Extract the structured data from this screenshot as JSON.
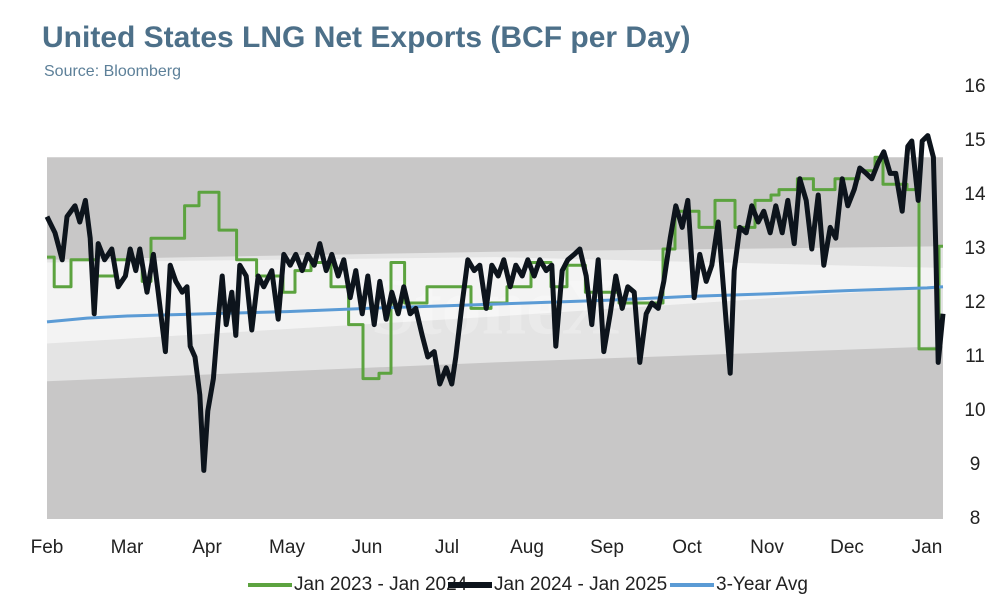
{
  "chart_data": {
    "type": "line",
    "title": "United States LNG Net Exports (BCF per Day)",
    "subtitle": "Source: Bloomberg",
    "watermark": "StoneX",
    "xlim": [
      0,
      11.2
    ],
    "xticks": [
      {
        "value": 0,
        "label": "Feb"
      },
      {
        "value": 1,
        "label": "Mar"
      },
      {
        "value": 2,
        "label": "Apr"
      },
      {
        "value": 3,
        "label": "May"
      },
      {
        "value": 4,
        "label": "Jun"
      },
      {
        "value": 5,
        "label": "Jul"
      },
      {
        "value": 6,
        "label": "Aug"
      },
      {
        "value": 7,
        "label": "Sep"
      },
      {
        "value": 8,
        "label": "Oct"
      },
      {
        "value": 9,
        "label": "Nov"
      },
      {
        "value": 10,
        "label": "Dec"
      },
      {
        "value": 11,
        "label": "Jan"
      }
    ],
    "ylim": [
      8,
      16
    ],
    "yticks": [
      8,
      9,
      10,
      11,
      12,
      13,
      14,
      15,
      16
    ],
    "legend": "bottom",
    "bands": [
      {
        "color": "#c8c7c7",
        "x": [
          0,
          5.6,
          11.2
        ],
        "lower": [
          8,
          8,
          8
        ],
        "upper": [
          14.7,
          14.7,
          14.7
        ]
      },
      {
        "color": "#e4e4e4",
        "x": [
          0,
          5.6,
          11.2
        ],
        "lower": [
          10.55,
          10.9,
          11.2
        ],
        "upper": [
          12.8,
          12.95,
          13.05
        ]
      },
      {
        "color": "#f3f3f3",
        "x": [
          0,
          5.6,
          11.2
        ],
        "lower": [
          11.25,
          11.75,
          12.3
        ],
        "upper": [
          12.75,
          12.85,
          12.65
        ]
      }
    ],
    "series": [
      {
        "name": "Jan 2023 - Jan 2024",
        "color": "#5ca33f",
        "width": 3,
        "step": true,
        "x": [
          0,
          0.09,
          0.3,
          0.62,
          0.85,
          1.19,
          1.3,
          1.72,
          1.9,
          2.15,
          2.37,
          2.62,
          2.95,
          3.1,
          3.3,
          3.55,
          3.77,
          3.95,
          4.15,
          4.3,
          4.47,
          4.75,
          5.1,
          5.3,
          5.55,
          5.75,
          6.05,
          6.3,
          6.5,
          6.73,
          7.15,
          7.5,
          7.7,
          7.85,
          8.15,
          8.35,
          8.6,
          8.85,
          9.05,
          9.15,
          9.38,
          9.58,
          9.85,
          10.15,
          10.35,
          10.45,
          10.75,
          10.9,
          11.15,
          11.2
        ],
        "values": [
          12.85,
          12.3,
          12.8,
          12.5,
          12.8,
          12.4,
          13.2,
          13.8,
          14.05,
          13.35,
          12.8,
          12.5,
          12.2,
          12.6,
          12.75,
          12.3,
          11.6,
          10.6,
          10.7,
          12.75,
          12.0,
          12.3,
          12.3,
          11.9,
          12.0,
          12.3,
          12.75,
          12.3,
          12.7,
          12.2,
          12.0,
          12.0,
          13.0,
          13.7,
          13.4,
          13.9,
          13.4,
          13.9,
          14.0,
          14.1,
          14.3,
          14.1,
          14.3,
          14.45,
          14.7,
          14.2,
          14.1,
          11.15,
          13.05,
          13.05
        ]
      },
      {
        "name": "Jan 2024 - Jan 2025",
        "color": "#0d141c",
        "width": 5,
        "x": [
          0,
          0.1,
          0.19,
          0.25,
          0.35,
          0.41,
          0.48,
          0.54,
          0.59,
          0.64,
          0.72,
          0.81,
          0.89,
          0.98,
          1.04,
          1.11,
          1.16,
          1.25,
          1.33,
          1.39,
          1.48,
          1.54,
          1.61,
          1.69,
          1.75,
          1.79,
          1.85,
          1.91,
          1.96,
          2.01,
          2.08,
          2.14,
          2.19,
          2.24,
          2.31,
          2.36,
          2.41,
          2.49,
          2.56,
          2.64,
          2.71,
          2.81,
          2.89,
          2.96,
          3.04,
          3.11,
          3.19,
          3.26,
          3.34,
          3.41,
          3.49,
          3.56,
          3.64,
          3.71,
          3.79,
          3.86,
          3.94,
          4.01,
          4.09,
          4.16,
          4.24,
          4.31,
          4.39,
          4.46,
          4.54,
          4.61,
          4.69,
          4.76,
          4.84,
          4.91,
          4.99,
          5.06,
          5.11,
          5.19,
          5.26,
          5.34,
          5.41,
          5.49,
          5.56,
          5.64,
          5.71,
          5.79,
          5.86,
          5.94,
          6.01,
          6.09,
          6.16,
          6.24,
          6.31,
          6.36,
          6.44,
          6.51,
          6.59,
          6.66,
          6.74,
          6.81,
          6.89,
          6.96,
          7.04,
          7.11,
          7.19,
          7.26,
          7.34,
          7.41,
          7.49,
          7.56,
          7.64,
          7.71,
          7.79,
          7.86,
          7.94,
          8.01,
          8.09,
          8.16,
          8.24,
          8.31,
          8.39,
          8.46,
          8.54,
          8.59,
          8.66,
          8.74,
          8.81,
          8.89,
          8.96,
          9.04,
          9.11,
          9.19,
          9.26,
          9.34,
          9.41,
          9.49,
          9.56,
          9.64,
          9.71,
          9.79,
          9.86,
          9.94,
          10.01,
          10.09,
          10.16,
          10.24,
          10.31,
          10.39,
          10.46,
          10.54,
          10.61,
          10.69,
          10.76,
          10.81,
          10.89,
          10.94,
          11.01,
          11.08,
          11.11,
          11.14,
          11.2
        ],
        "values": [
          13.6,
          13.3,
          12.8,
          13.6,
          13.8,
          13.5,
          13.9,
          13.2,
          11.8,
          13.1,
          12.8,
          13.0,
          12.3,
          12.5,
          13.0,
          12.6,
          13.0,
          12.2,
          12.9,
          12.2,
          11.1,
          12.7,
          12.4,
          12.2,
          12.3,
          11.2,
          11.0,
          10.3,
          8.9,
          10.0,
          10.6,
          11.7,
          12.5,
          11.6,
          12.2,
          11.4,
          12.7,
          12.5,
          11.5,
          12.5,
          12.3,
          12.6,
          11.7,
          12.9,
          12.7,
          12.9,
          12.6,
          12.9,
          12.7,
          13.1,
          12.6,
          12.9,
          12.5,
          12.8,
          12.1,
          12.6,
          11.8,
          12.5,
          11.6,
          12.4,
          11.7,
          12.2,
          11.8,
          12.3,
          11.8,
          11.9,
          11.4,
          11.0,
          11.1,
          10.5,
          10.8,
          10.5,
          11.0,
          12.0,
          12.8,
          12.6,
          12.7,
          11.9,
          12.7,
          12.5,
          12.8,
          12.3,
          12.7,
          12.5,
          12.8,
          12.5,
          12.8,
          12.6,
          12.7,
          11.2,
          12.6,
          12.8,
          12.9,
          13.0,
          12.5,
          11.6,
          12.8,
          11.1,
          11.8,
          12.5,
          11.9,
          12.3,
          12.2,
          10.9,
          11.8,
          12.0,
          11.9,
          12.4,
          13.2,
          13.8,
          13.4,
          13.9,
          12.1,
          12.9,
          12.4,
          12.7,
          13.5,
          12.2,
          10.7,
          12.6,
          13.4,
          13.3,
          13.8,
          13.5,
          13.7,
          13.3,
          13.8,
          13.3,
          13.9,
          13.1,
          14.3,
          13.9,
          13.0,
          14.0,
          12.7,
          13.4,
          13.2,
          14.3,
          13.8,
          14.1,
          14.5,
          14.4,
          14.3,
          14.6,
          14.8,
          14.4,
          14.4,
          13.7,
          14.9,
          15.0,
          13.9,
          15.0,
          15.1,
          14.7,
          13.0,
          10.9,
          11.8
        ]
      },
      {
        "name": "3-Year Avg",
        "color": "#5b9bd5",
        "width": 3,
        "x": [
          0,
          0.5,
          1,
          2,
          3,
          4,
          5,
          6,
          7,
          8,
          9,
          10,
          11,
          11.2
        ],
        "values": [
          11.65,
          11.72,
          11.76,
          11.8,
          11.84,
          11.9,
          11.95,
          12.0,
          12.05,
          12.12,
          12.17,
          12.23,
          12.28,
          12.3
        ]
      }
    ]
  }
}
